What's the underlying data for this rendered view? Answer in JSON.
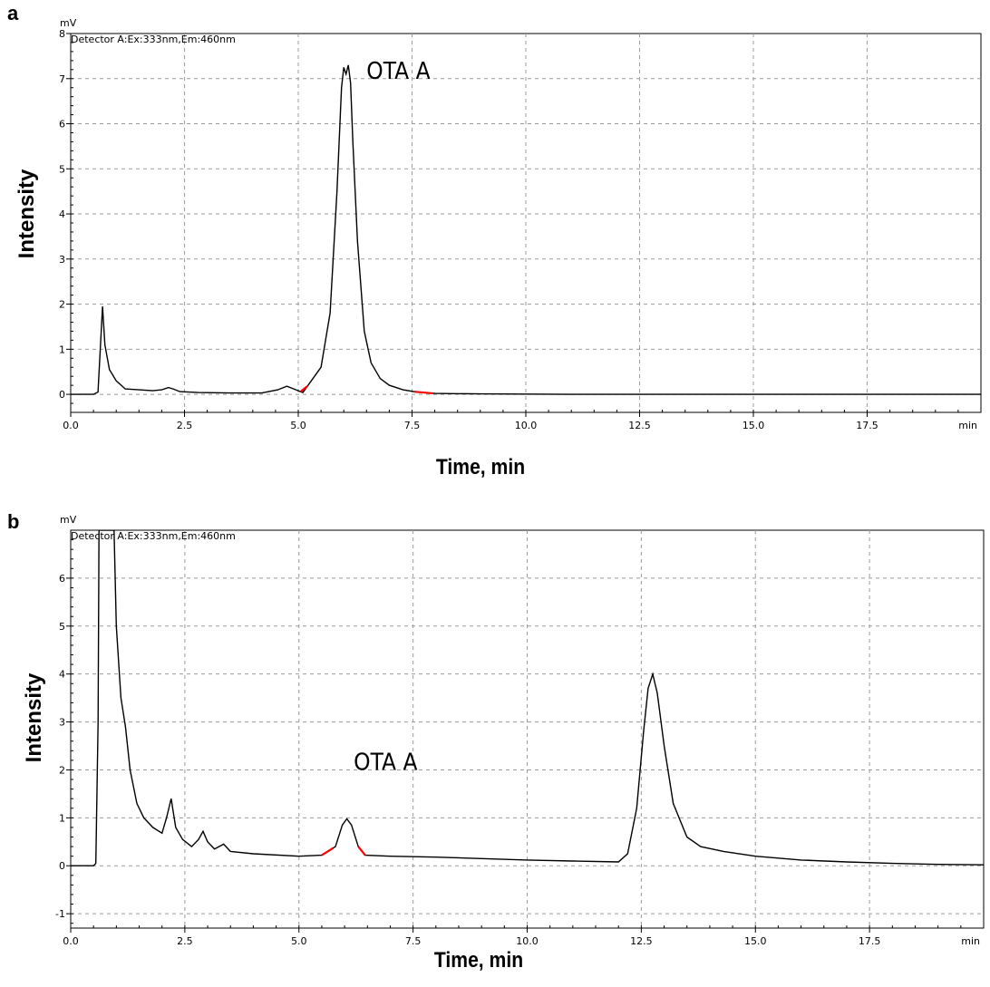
{
  "chart_data": [
    {
      "type": "line",
      "panel": "a",
      "detector": "Detector A:Ex:333nm,Em:460nm",
      "y_unit": "mV",
      "x_unit": "min",
      "xlabel": "Time, min",
      "ylabel": "Intensity",
      "xlim": [
        0,
        20
      ],
      "ylim": [
        -0.4,
        8
      ],
      "xticks": [
        "0.0",
        "2.5",
        "5.0",
        "7.5",
        "10.0",
        "12.5",
        "15.0",
        "17.5"
      ],
      "yticks": [
        "0",
        "1",
        "2",
        "3",
        "4",
        "5",
        "6",
        "7",
        "8"
      ],
      "grid": true,
      "annotations": [
        {
          "text": "OTA A",
          "x": 6.5,
          "y": 7.0
        }
      ],
      "series": [
        {
          "color": "#000000",
          "x": [
            0.0,
            0.5,
            0.6,
            0.65,
            0.7,
            0.75,
            0.85,
            1.0,
            1.2,
            1.5,
            1.8,
            2.0,
            2.15,
            2.25,
            2.4,
            2.8,
            3.5,
            4.2,
            4.55,
            4.75,
            4.9,
            5.1,
            5.5,
            5.7,
            5.85,
            5.95,
            6.0,
            6.05,
            6.1,
            6.15,
            6.2,
            6.3,
            6.45,
            6.6,
            6.8,
            7.0,
            7.3,
            7.6,
            8.0,
            9.0,
            11.0,
            13.0,
            15.0,
            17.0,
            19.0,
            20.0
          ],
          "y": [
            0.0,
            0.0,
            0.05,
            1.0,
            1.95,
            1.1,
            0.55,
            0.3,
            0.12,
            0.1,
            0.08,
            0.1,
            0.15,
            0.12,
            0.06,
            0.04,
            0.03,
            0.03,
            0.1,
            0.18,
            0.12,
            0.04,
            0.6,
            1.8,
            4.5,
            6.8,
            7.25,
            7.1,
            7.3,
            6.9,
            5.6,
            3.4,
            1.4,
            0.7,
            0.35,
            0.2,
            0.1,
            0.05,
            0.02,
            0.01,
            0.0,
            0.0,
            0.0,
            0.0,
            0.0,
            0.0
          ]
        }
      ],
      "integration_marks": [
        {
          "x": [
            5.05,
            5.2
          ]
        },
        {
          "x": [
            7.55,
            7.95
          ]
        }
      ],
      "integration_color": "#ff0000"
    },
    {
      "type": "line",
      "panel": "b",
      "detector": "Detector A:Ex:333nm,Em:460nm",
      "y_unit": "mV",
      "x_unit": "min",
      "xlabel": "Time, min",
      "ylabel": "Intensity",
      "xlim": [
        0,
        20
      ],
      "ylim": [
        -1.3,
        7
      ],
      "xticks": [
        "0.0",
        "2.5",
        "5.0",
        "7.5",
        "10.0",
        "12.5",
        "15.0",
        "17.5"
      ],
      "yticks": [
        "-1",
        "0",
        "1",
        "2",
        "3",
        "4",
        "5",
        "6"
      ],
      "grid": true,
      "annotations": [
        {
          "text": "OTA A",
          "x": 6.2,
          "y": 2.0
        }
      ],
      "series": [
        {
          "color": "#000000",
          "x": [
            0.0,
            0.5,
            0.55,
            0.6,
            0.62,
            0.65,
            0.95,
            1.0,
            1.1,
            1.2,
            1.3,
            1.45,
            1.6,
            1.8,
            2.0,
            2.1,
            2.2,
            2.3,
            2.45,
            2.65,
            2.8,
            2.9,
            3.0,
            3.15,
            3.35,
            3.5,
            4.0,
            5.0,
            5.5,
            5.8,
            5.95,
            6.05,
            6.15,
            6.3,
            6.45,
            7.0,
            8.0,
            9.0,
            10.0,
            11.0,
            12.0,
            12.2,
            12.4,
            12.55,
            12.65,
            12.75,
            12.85,
            13.0,
            13.2,
            13.5,
            13.8,
            14.3,
            15.0,
            16.0,
            17.0,
            18.0,
            19.0,
            20.0
          ],
          "y": [
            0.0,
            0.0,
            0.05,
            3.0,
            7.0,
            7.0,
            7.0,
            5.0,
            3.5,
            2.9,
            2.0,
            1.3,
            1.0,
            0.8,
            0.68,
            1.0,
            1.4,
            0.8,
            0.55,
            0.4,
            0.55,
            0.72,
            0.5,
            0.35,
            0.45,
            0.3,
            0.25,
            0.2,
            0.22,
            0.4,
            0.85,
            0.98,
            0.85,
            0.4,
            0.22,
            0.2,
            0.18,
            0.15,
            0.12,
            0.1,
            0.08,
            0.25,
            1.2,
            2.8,
            3.7,
            4.0,
            3.6,
            2.5,
            1.3,
            0.6,
            0.4,
            0.3,
            0.2,
            0.12,
            0.08,
            0.05,
            0.03,
            0.02
          ]
        }
      ],
      "integration_marks": [
        {
          "x": [
            5.5,
            5.75
          ]
        },
        {
          "x": [
            6.3,
            6.45
          ]
        }
      ],
      "integration_color": "#ff0000"
    }
  ]
}
